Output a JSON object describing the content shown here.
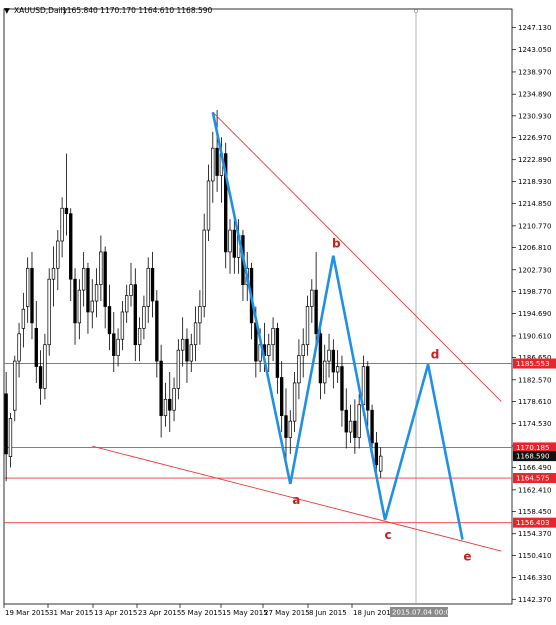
{
  "header": {
    "marker": "▼",
    "symbol": "XAUUSD,Daily",
    "ohlc": "1165.840 1170.170 1164.610 1168.590"
  },
  "chart_data": {
    "type": "candlestick",
    "symbol": "XAUUSD",
    "timeframe": "Daily",
    "ylim": [
      1141.5,
      1250.5
    ],
    "y_ticks": [
      "1247.130",
      "1243.050",
      "1238.970",
      "1234.890",
      "1230.930",
      "1226.970",
      "1222.890",
      "1218.930",
      "1214.850",
      "1210.770",
      "1206.810",
      "1202.730",
      "1198.770",
      "1194.690",
      "1190.610",
      "1186.650",
      "1182.570",
      "1178.610",
      "1174.530",
      "1170.450",
      "1166.490",
      "1162.410",
      "1158.450",
      "1154.370",
      "1150.410",
      "1146.330",
      "1142.370"
    ],
    "x_ticks": [
      "19 Mar 2015",
      "31 Mar 2015",
      "13 Apr 2015",
      "23 Apr 2015",
      "5 May 2015",
      "15 May 2015",
      "27 May 2015",
      "8 Jun 2015",
      "18 Jun 2015"
    ],
    "crosshair_label": "2015.07.04 00:00",
    "last_price": "1168.590",
    "price_labels": [
      {
        "text": "1185.553",
        "value": 1185.553,
        "color": "#e8262a"
      },
      {
        "text": "1170.185",
        "value": 1170.185,
        "color": "#e8262a"
      },
      {
        "text": "1168.590",
        "value": 1168.59,
        "color": "#111111"
      },
      {
        "text": "1164.575",
        "value": 1164.575,
        "color": "#e8262a"
      },
      {
        "text": "1156.403",
        "value": 1156.403,
        "color": "#e8262a"
      }
    ],
    "horizontal_levels": [
      1185.553,
      1170.185,
      1164.575,
      1156.403
    ],
    "channel_lines": [
      [
        [
          48,
          1231.6
        ],
        [
          115,
          1178.6
        ]
      ],
      [
        [
          20,
          1170.4
        ],
        [
          115,
          1151.2
        ]
      ]
    ],
    "wave_path": [
      [
        48,
        1231.6
      ],
      [
        66,
        1163.5
      ],
      [
        76,
        1205.3
      ],
      [
        88,
        1156.9
      ],
      [
        98,
        1185.4
      ],
      [
        106,
        1153.3
      ]
    ],
    "wave_labels": [
      {
        "label": "a",
        "x": 66,
        "y": 1163.5
      },
      {
        "label": "b",
        "x": 76,
        "y": 1205.3
      },
      {
        "label": "c",
        "x": 88,
        "y": 1156.9
      },
      {
        "label": "d",
        "x": 98,
        "y": 1185.4
      },
      {
        "label": "e",
        "x": 106,
        "y": 1153.3
      }
    ],
    "candles": [
      {
        "o": 1180.0,
        "h": 1184.0,
        "c": 1169.0,
        "l": 1164.0
      },
      {
        "o": 1168.5,
        "h": 1176.5,
        "c": 1175.5,
        "l": 1166.5
      },
      {
        "o": 1177.0,
        "h": 1187.0,
        "c": 1186.0,
        "l": 1175.0
      },
      {
        "o": 1186.0,
        "h": 1193.0,
        "c": 1191.0,
        "l": 1183.0
      },
      {
        "o": 1192.0,
        "h": 1198.5,
        "c": 1195.5,
        "l": 1188.5
      },
      {
        "o": 1196.0,
        "h": 1205.0,
        "c": 1203.0,
        "l": 1193.0
      },
      {
        "o": 1203.0,
        "h": 1206.0,
        "c": 1193.0,
        "l": 1190.0
      },
      {
        "o": 1192.0,
        "h": 1197.0,
        "c": 1185.0,
        "l": 1182.0
      },
      {
        "o": 1185.0,
        "h": 1188.0,
        "c": 1181.0,
        "l": 1178.0
      },
      {
        "o": 1181.0,
        "h": 1191.0,
        "c": 1189.0,
        "l": 1179.0
      },
      {
        "o": 1189.0,
        "h": 1203.0,
        "c": 1201.0,
        "l": 1187.0
      },
      {
        "o": 1201.0,
        "h": 1207.0,
        "c": 1203.0,
        "l": 1196.0
      },
      {
        "o": 1203.0,
        "h": 1210.0,
        "c": 1208.0,
        "l": 1199.0
      },
      {
        "o": 1208.0,
        "h": 1216.0,
        "c": 1214.0,
        "l": 1205.0
      },
      {
        "o": 1214.0,
        "h": 1224.0,
        "c": 1213.0,
        "l": 1209.0
      },
      {
        "o": 1213.0,
        "h": 1214.0,
        "c": 1201.0,
        "l": 1197.0
      },
      {
        "o": 1201.0,
        "h": 1203.0,
        "c": 1193.0,
        "l": 1189.0
      },
      {
        "o": 1193.0,
        "h": 1201.0,
        "c": 1199.0,
        "l": 1190.0
      },
      {
        "o": 1199.0,
        "h": 1206.0,
        "c": 1203.0,
        "l": 1196.0
      },
      {
        "o": 1203.0,
        "h": 1204.0,
        "c": 1195.0,
        "l": 1191.0
      },
      {
        "o": 1195.0,
        "h": 1201.0,
        "c": 1197.0,
        "l": 1192.0
      },
      {
        "o": 1197.0,
        "h": 1203.0,
        "c": 1200.0,
        "l": 1194.0
      },
      {
        "o": 1200.0,
        "h": 1209.0,
        "c": 1206.0,
        "l": 1197.0
      },
      {
        "o": 1206.0,
        "h": 1207.0,
        "c": 1196.0,
        "l": 1192.0
      },
      {
        "o": 1196.0,
        "h": 1200.0,
        "c": 1191.0,
        "l": 1188.0
      },
      {
        "o": 1191.0,
        "h": 1195.0,
        "c": 1187.0,
        "l": 1184.0
      },
      {
        "o": 1187.0,
        "h": 1192.0,
        "c": 1190.0,
        "l": 1185.0
      },
      {
        "o": 1190.0,
        "h": 1197.0,
        "c": 1195.0,
        "l": 1188.0
      },
      {
        "o": 1195.0,
        "h": 1200.0,
        "c": 1198.0,
        "l": 1193.0
      },
      {
        "o": 1198.0,
        "h": 1204.0,
        "c": 1200.0,
        "l": 1196.0
      },
      {
        "o": 1200.0,
        "h": 1203.0,
        "c": 1189.0,
        "l": 1186.0
      },
      {
        "o": 1189.0,
        "h": 1194.0,
        "c": 1192.0,
        "l": 1186.0
      },
      {
        "o": 1192.0,
        "h": 1198.0,
        "c": 1196.0,
        "l": 1190.0
      },
      {
        "o": 1196.0,
        "h": 1205.0,
        "c": 1203.0,
        "l": 1193.0
      },
      {
        "o": 1203.0,
        "h": 1206.0,
        "c": 1197.0,
        "l": 1194.0
      },
      {
        "o": 1197.0,
        "h": 1199.0,
        "c": 1186.0,
        "l": 1183.0
      },
      {
        "o": 1186.0,
        "h": 1189.0,
        "c": 1176.0,
        "l": 1172.0
      },
      {
        "o": 1176.0,
        "h": 1182.0,
        "c": 1179.0,
        "l": 1174.0
      },
      {
        "o": 1179.0,
        "h": 1184.0,
        "c": 1177.0,
        "l": 1173.0
      },
      {
        "o": 1177.0,
        "h": 1183.0,
        "c": 1181.0,
        "l": 1175.0
      },
      {
        "o": 1181.0,
        "h": 1190.0,
        "c": 1188.0,
        "l": 1179.0
      },
      {
        "o": 1188.0,
        "h": 1194.0,
        "c": 1190.0,
        "l": 1185.0
      },
      {
        "o": 1190.0,
        "h": 1192.0,
        "c": 1186.0,
        "l": 1182.0
      },
      {
        "o": 1186.0,
        "h": 1191.0,
        "c": 1189.0,
        "l": 1184.0
      },
      {
        "o": 1189.0,
        "h": 1196.0,
        "c": 1193.0,
        "l": 1186.0
      },
      {
        "o": 1193.0,
        "h": 1199.0,
        "c": 1196.0,
        "l": 1189.0
      },
      {
        "o": 1196.0,
        "h": 1213.0,
        "c": 1210.0,
        "l": 1194.0
      },
      {
        "o": 1210.0,
        "h": 1222.0,
        "c": 1219.0,
        "l": 1208.0
      },
      {
        "o": 1219.0,
        "h": 1228.0,
        "c": 1225.0,
        "l": 1215.0
      },
      {
        "o": 1225.0,
        "h": 1232.0,
        "c": 1220.0,
        "l": 1217.0
      },
      {
        "o": 1220.0,
        "h": 1227.0,
        "c": 1224.0,
        "l": 1215.0
      },
      {
        "o": 1224.0,
        "h": 1226.0,
        "c": 1206.0,
        "l": 1203.0
      },
      {
        "o": 1206.0,
        "h": 1212.0,
        "c": 1210.0,
        "l": 1202.0
      },
      {
        "o": 1210.0,
        "h": 1213.0,
        "c": 1205.0,
        "l": 1202.0
      },
      {
        "o": 1205.0,
        "h": 1212.0,
        "c": 1209.0,
        "l": 1202.0
      },
      {
        "o": 1209.0,
        "h": 1210.0,
        "c": 1200.0,
        "l": 1197.0
      },
      {
        "o": 1200.0,
        "h": 1206.0,
        "c": 1203.0,
        "l": 1197.0
      },
      {
        "o": 1203.0,
        "h": 1204.0,
        "c": 1193.0,
        "l": 1190.0
      },
      {
        "o": 1193.0,
        "h": 1196.0,
        "c": 1186.0,
        "l": 1183.0
      },
      {
        "o": 1186.0,
        "h": 1192.0,
        "c": 1189.0,
        "l": 1184.0
      },
      {
        "o": 1189.0,
        "h": 1193.0,
        "c": 1187.0,
        "l": 1184.0
      },
      {
        "o": 1187.0,
        "h": 1191.0,
        "c": 1189.0,
        "l": 1184.0
      },
      {
        "o": 1189.0,
        "h": 1194.0,
        "c": 1192.0,
        "l": 1186.0
      },
      {
        "o": 1192.0,
        "h": 1193.0,
        "c": 1183.0,
        "l": 1180.0
      },
      {
        "o": 1183.0,
        "h": 1186.0,
        "c": 1176.0,
        "l": 1173.0
      },
      {
        "o": 1176.0,
        "h": 1181.0,
        "c": 1172.0,
        "l": 1168.0
      },
      {
        "o": 1172.0,
        "h": 1177.0,
        "c": 1175.0,
        "l": 1169.0
      },
      {
        "o": 1175.0,
        "h": 1184.0,
        "c": 1182.0,
        "l": 1173.0
      },
      {
        "o": 1182.0,
        "h": 1190.0,
        "c": 1187.0,
        "l": 1179.0
      },
      {
        "o": 1187.0,
        "h": 1192.0,
        "c": 1189.0,
        "l": 1183.0
      },
      {
        "o": 1189.0,
        "h": 1198.0,
        "c": 1196.0,
        "l": 1187.0
      },
      {
        "o": 1196.0,
        "h": 1201.0,
        "c": 1199.0,
        "l": 1193.0
      },
      {
        "o": 1199.0,
        "h": 1206.0,
        "c": 1191.0,
        "l": 1188.0
      },
      {
        "o": 1191.0,
        "h": 1193.0,
        "c": 1182.0,
        "l": 1179.0
      },
      {
        "o": 1182.0,
        "h": 1189.0,
        "c": 1186.0,
        "l": 1180.0
      },
      {
        "o": 1186.0,
        "h": 1191.0,
        "c": 1188.0,
        "l": 1183.0
      },
      {
        "o": 1188.0,
        "h": 1190.0,
        "c": 1184.0,
        "l": 1181.0
      },
      {
        "o": 1184.0,
        "h": 1188.0,
        "c": 1185.0,
        "l": 1182.0
      },
      {
        "o": 1185.0,
        "h": 1187.0,
        "c": 1177.0,
        "l": 1174.0
      },
      {
        "o": 1177.0,
        "h": 1181.0,
        "c": 1173.0,
        "l": 1170.0
      },
      {
        "o": 1173.0,
        "h": 1178.0,
        "c": 1175.0,
        "l": 1171.0
      },
      {
        "o": 1175.0,
        "h": 1179.0,
        "c": 1172.0,
        "l": 1169.0
      },
      {
        "o": 1172.0,
        "h": 1180.0,
        "c": 1178.0,
        "l": 1170.0
      },
      {
        "o": 1178.0,
        "h": 1187.0,
        "c": 1185.0,
        "l": 1176.0
      },
      {
        "o": 1185.0,
        "h": 1186.0,
        "c": 1177.0,
        "l": 1174.0
      },
      {
        "o": 1177.0,
        "h": 1178.0,
        "c": 1171.0,
        "l": 1169.0
      },
      {
        "o": 1171.0,
        "h": 1173.0,
        "c": 1167.0,
        "l": 1165.0
      },
      {
        "o": 1165.84,
        "h": 1170.17,
        "c": 1168.59,
        "l": 1164.61
      }
    ]
  }
}
